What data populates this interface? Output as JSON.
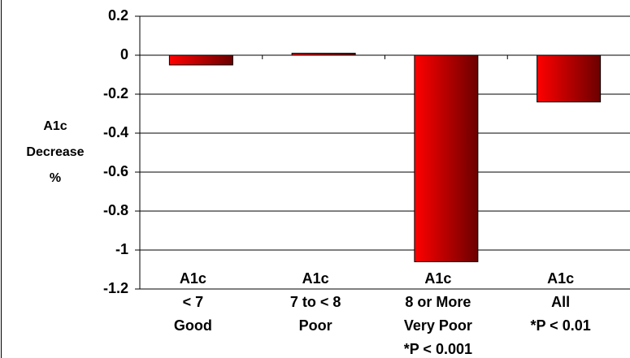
{
  "chart_data": {
    "type": "bar",
    "ylabel": [
      "A1c",
      "Decrease",
      "%"
    ],
    "categories": [
      [
        "A1c",
        "< 7",
        "Good"
      ],
      [
        "A1c",
        "7 to < 8",
        "Poor"
      ],
      [
        "A1c",
        "8 or More",
        "Very Poor",
        "*P < 0.001"
      ],
      [
        "A1c",
        "All",
        "*P < 0.01"
      ]
    ],
    "values": [
      -0.05,
      0.01,
      -1.06,
      -0.24
    ],
    "color": [
      "#ff0000",
      "#6b0000"
    ],
    "ylim": [
      -1.2,
      0.2
    ],
    "yticks": [
      0.2,
      0,
      -0.2,
      -0.4,
      -0.6,
      -0.8,
      -1,
      -1.2
    ],
    "grid": true
  }
}
